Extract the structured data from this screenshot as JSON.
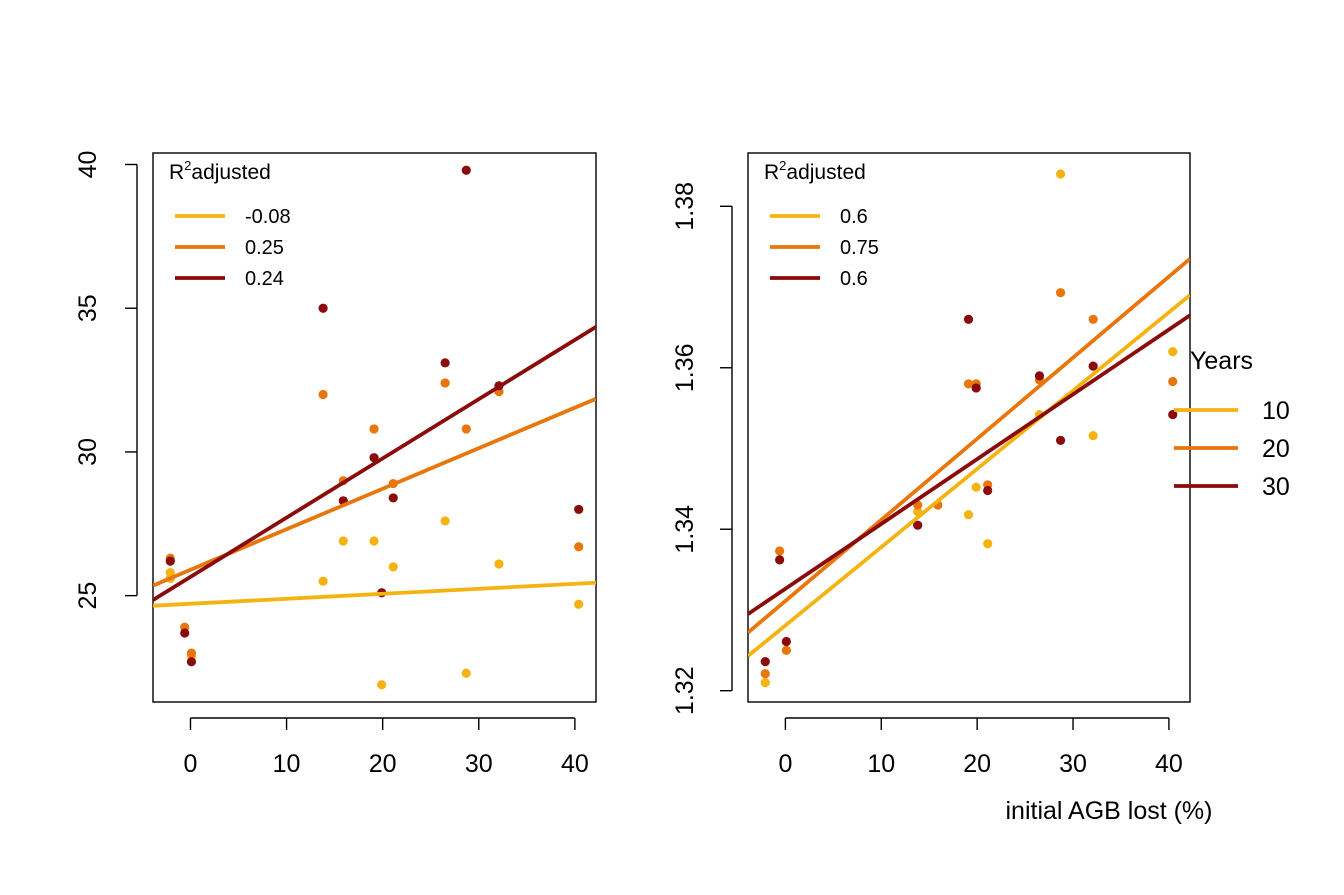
{
  "colors": {
    "y10": "#F5B312",
    "y20": "#E8760B",
    "y30": "#8B0A0A",
    "axis": "#000000"
  },
  "legend": {
    "title": "R",
    "title_sup": "2",
    "title_rest": "adjusted"
  },
  "years_legend": {
    "title": "Years",
    "items": [
      {
        "label": "10",
        "color": "#F5B312"
      },
      {
        "label": "20",
        "color": "#E8760B"
      },
      {
        "label": "30",
        "color": "#8B0A0A"
      }
    ]
  },
  "chart_data": [
    {
      "type": "scatter",
      "xlabel": "",
      "ylabel": "",
      "xlim": [
        -3.9,
        42.2
      ],
      "ylim": [
        21.3,
        40.4
      ],
      "xticks": [
        0,
        10,
        20,
        30,
        40
      ],
      "yticks": [
        25,
        30,
        35,
        40
      ],
      "legend_position": "top-left",
      "series": [
        {
          "name": "-0.08",
          "color": "#F5B312",
          "x": [
            -2.1,
            -2.1,
            0.1,
            13.8,
            15.9,
            19.1,
            19.9,
            21.1,
            26.5,
            28.7,
            32.1,
            40.4
          ],
          "y": [
            25.6,
            25.8,
            22.9,
            25.5,
            26.9,
            26.9,
            21.9,
            26.0,
            27.6,
            22.3,
            26.1,
            24.7
          ],
          "fit": [
            [
              -3.9,
              24.65
            ],
            [
              42.2,
              25.45
            ]
          ]
        },
        {
          "name": "0.25",
          "color": "#E8760B",
          "x": [
            -2.1,
            -0.6,
            0.1,
            13.8,
            15.9,
            19.1,
            21.1,
            26.5,
            28.7,
            32.1,
            40.4
          ],
          "y": [
            26.3,
            23.9,
            23.0,
            32.0,
            29.0,
            30.8,
            28.9,
            32.4,
            30.8,
            32.1,
            26.7
          ],
          "fit": [
            [
              -3.9,
              25.35
            ],
            [
              42.2,
              31.85
            ]
          ]
        },
        {
          "name": "0.24",
          "color": "#8B0A0A",
          "x": [
            -2.1,
            -0.6,
            0.1,
            13.8,
            15.9,
            19.1,
            19.9,
            21.1,
            26.5,
            28.7,
            32.1,
            40.4
          ],
          "y": [
            26.2,
            23.7,
            22.7,
            35.0,
            28.3,
            29.8,
            25.1,
            28.4,
            33.1,
            39.8,
            32.3,
            28.0
          ],
          "fit": [
            [
              -3.9,
              24.85
            ],
            [
              42.2,
              34.35
            ]
          ]
        }
      ]
    },
    {
      "type": "scatter",
      "xlabel": "initial AGB lost (%)",
      "ylabel": "",
      "xlim": [
        -3.9,
        42.2
      ],
      "ylim": [
        1.3186,
        1.3866
      ],
      "xticks": [
        0,
        10,
        20,
        30,
        40
      ],
      "yticks": [
        1.32,
        1.34,
        1.36,
        1.38
      ],
      "legend_position": "top-left",
      "series": [
        {
          "name": "0.6",
          "color": "#F5B312",
          "x": [
            -2.1,
            13.8,
            19.1,
            19.9,
            21.1,
            26.5,
            28.7,
            32.1,
            40.4
          ],
          "y": [
            1.321,
            1.3422,
            1.3418,
            1.3452,
            1.3382,
            1.3542,
            1.384,
            1.3516,
            1.362
          ],
          "fit": [
            [
              -3.9,
              1.3243
            ],
            [
              42.2,
              1.369
            ]
          ]
        },
        {
          "name": "0.75",
          "color": "#E8760B",
          "x": [
            -2.1,
            -0.6,
            0.1,
            13.8,
            15.9,
            19.1,
            19.9,
            21.1,
            26.5,
            28.7,
            32.1,
            40.4
          ],
          "y": [
            1.3221,
            1.3373,
            1.325,
            1.343,
            1.343,
            1.358,
            1.358,
            1.3455,
            1.3585,
            1.3693,
            1.366,
            1.3583
          ],
          "fit": [
            [
              -3.9,
              1.3272
            ],
            [
              42.2,
              1.3735
            ]
          ]
        },
        {
          "name": "0.6",
          "color": "#8B0A0A",
          "x": [
            -2.1,
            -0.6,
            0.1,
            13.8,
            19.1,
            19.9,
            21.1,
            26.5,
            28.7,
            32.1,
            40.4
          ],
          "y": [
            1.3236,
            1.3362,
            1.3261,
            1.3405,
            1.366,
            1.3575,
            1.3448,
            1.359,
            1.351,
            1.3602,
            1.3542
          ],
          "fit": [
            [
              -3.9,
              1.3295
            ],
            [
              42.2,
              1.3665
            ]
          ]
        }
      ]
    }
  ]
}
